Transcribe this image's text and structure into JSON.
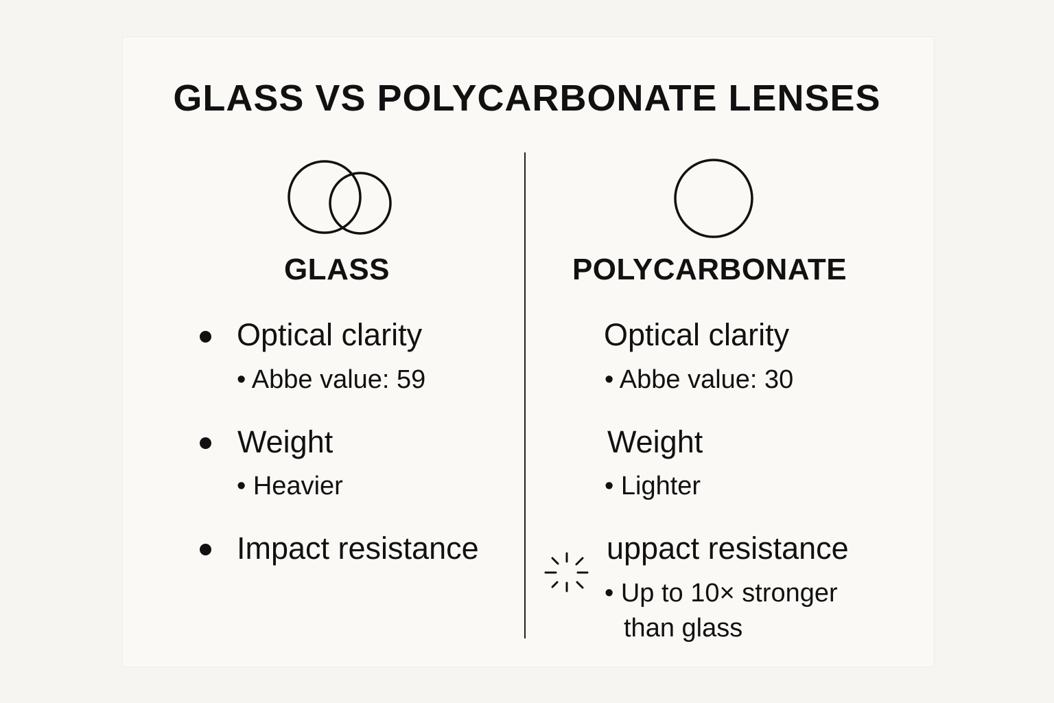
{
  "title": "GLASS VS POLYCARBONATE LENSES",
  "left": {
    "icon": "double-circle-lens-icon",
    "heading": "GLASS",
    "items": [
      {
        "label": "Optical clarity",
        "detail": "• Abbe value: 59"
      },
      {
        "label": "Weight",
        "detail": "• Heavier"
      },
      {
        "label": "Impact resistance"
      }
    ]
  },
  "right": {
    "icon": "single-circle-lens-icon",
    "heading": "POLYCARBONATE",
    "items": [
      {
        "label": "Optical clarity",
        "detail": "• Abbe value: 30"
      },
      {
        "label": "Weight",
        "detail": "• Lighter"
      },
      {
        "label": "uppact resistance",
        "detail": "• Up to 10× stronger",
        "detail2": "than glass",
        "icon": "impact-burst-icon"
      }
    ]
  },
  "colors": {
    "background": "#f6f5f1",
    "card": "#faf9f6",
    "ink": "#111111"
  }
}
